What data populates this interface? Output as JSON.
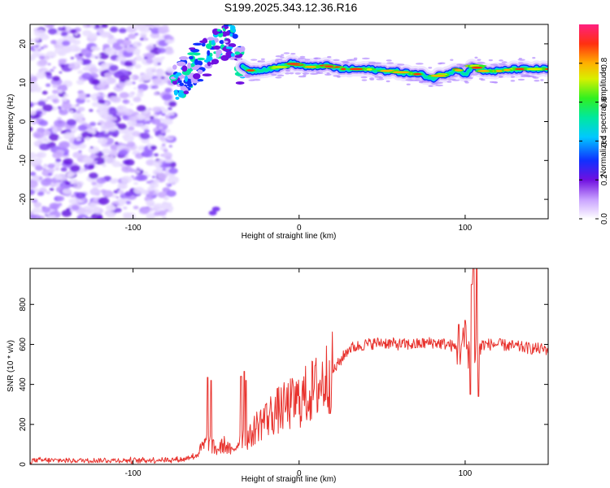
{
  "title": "S199.2025.343.12.36.R16",
  "chart_data": [
    {
      "type": "heatmap",
      "name": "spectrogram",
      "xlabel": "Height of straight line (km)",
      "ylabel": "Frequency (Hz)",
      "xlim": [
        -162,
        150
      ],
      "ylim": [
        -25,
        25
      ],
      "xticks": [
        -100,
        0,
        100
      ],
      "xtick_labels": [
        "-100",
        "0",
        "100"
      ],
      "yticks": [
        -20,
        -10,
        0,
        10,
        20
      ],
      "ytick_labels": [
        "-20",
        "-10",
        "0",
        "10",
        "20"
      ],
      "noise_region_x": [
        -162,
        -76
      ],
      "signal_ridge": {
        "x": [
          -72,
          -65,
          -58,
          -50,
          -42,
          -35,
          -28,
          -20,
          -12,
          -5,
          0,
          8,
          15,
          25,
          40,
          55,
          65,
          75,
          80,
          85,
          90,
          95,
          100,
          105,
          110,
          120,
          130,
          140,
          150
        ],
        "y": [
          10,
          14,
          16,
          19,
          22,
          14,
          13,
          13.5,
          14,
          15,
          14.5,
          14,
          14.5,
          13.5,
          13.5,
          13,
          12.5,
          12,
          11,
          12,
          12.5,
          13.5,
          12,
          14.5,
          13,
          13,
          13.5,
          13.5,
          13.5
        ]
      },
      "colorbar": {
        "label": "Normalized spectral amplitude",
        "range": [
          0,
          1
        ],
        "ticks": [
          0.0,
          0.2,
          0.4,
          0.6,
          0.8
        ],
        "tick_labels": [
          "0.0",
          "0.2",
          "0.4",
          "0.6",
          "0.8"
        ]
      }
    },
    {
      "type": "line",
      "name": "snr",
      "xlabel": "Height of straight line (km)",
      "ylabel": "SNR (10 * v/v)",
      "xlim": [
        -162,
        150
      ],
      "ylim": [
        0,
        980
      ],
      "xticks": [
        -100,
        0,
        100
      ],
      "xtick_labels": [
        "-100",
        "0",
        "100"
      ],
      "yticks": [
        0,
        200,
        400,
        600,
        800
      ],
      "ytick_labels": [
        "0",
        "200",
        "400",
        "600",
        "800"
      ],
      "color": "#e8322d",
      "trend": {
        "x": [
          -162,
          -100,
          -70,
          -62,
          -55,
          -50,
          -45,
          -40,
          -35,
          -30,
          -25,
          -20,
          -15,
          -10,
          -5,
          0,
          5,
          10,
          15,
          20,
          25,
          30,
          40,
          50,
          60,
          70,
          80,
          90,
          95,
          100,
          105,
          110,
          120,
          130,
          140,
          150
        ],
        "y": [
          20,
          20,
          25,
          45,
          120,
          70,
          100,
          60,
          140,
          130,
          200,
          230,
          260,
          280,
          300,
          320,
          350,
          380,
          420,
          460,
          520,
          580,
          600,
          610,
          600,
          600,
          610,
          600,
          580,
          600,
          570,
          600,
          600,
          590,
          580,
          575
        ]
      },
      "spikes": [
        {
          "x": -55,
          "y": 435
        },
        {
          "x": -53,
          "y": 420
        },
        {
          "x": -35,
          "y": 440
        },
        {
          "x": -32,
          "y": 420
        },
        {
          "x": -33,
          "y": 465
        },
        {
          "x": -20,
          "y": 300
        },
        {
          "x": 96,
          "y": 700
        },
        {
          "x": 100,
          "y": 720
        },
        {
          "x": 104,
          "y": 900
        },
        {
          "x": 105,
          "y": 980
        },
        {
          "x": 107,
          "y": 980
        },
        {
          "x": 103,
          "y": 350
        },
        {
          "x": 108,
          "y": 340
        }
      ]
    }
  ]
}
